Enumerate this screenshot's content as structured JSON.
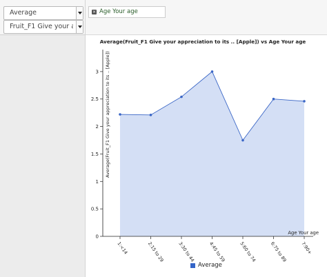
{
  "controls": {
    "aggregate_select": {
      "value": "Average"
    },
    "field_select": {
      "value": "Fruit_F1 Give your apprec"
    },
    "group_chip": {
      "label": "Age Your age"
    }
  },
  "colors": {
    "line": "#3a66c6",
    "fill": "#d4dff5",
    "legend_swatch": "#3465c8"
  },
  "chart_data": {
    "type": "area",
    "title": "Average(Fruit_F1 Give your appreciation to its .. [Apple]) vs Age Your age",
    "xlabel": "Age Your age",
    "ylabel": "Average(Fruit_F1 Give your appreciation to its .. [Apple])",
    "categories": [
      "1:<14",
      "2:15 to 29",
      "3:30 to 44",
      "4:45 to 59",
      "5:60 to 74",
      "6:75 to 89",
      "7:90+"
    ],
    "series": [
      {
        "name": "Average",
        "values": [
          2.22,
          2.21,
          2.54,
          3.0,
          1.75,
          2.5,
          2.46
        ]
      }
    ],
    "ylim": [
      0,
      3.4
    ],
    "yticks": [
      0,
      0.5,
      1,
      1.5,
      2,
      2.5,
      3
    ],
    "ytick_labels": [
      "0",
      "0.5",
      "1",
      "1.5",
      "2",
      "2.5",
      "3"
    ],
    "grid": false,
    "legend_position": "bottom"
  }
}
